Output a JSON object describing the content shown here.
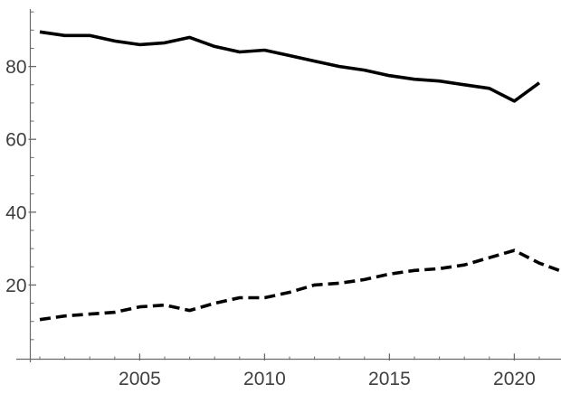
{
  "chart_data": {
    "type": "line",
    "title": "",
    "xlabel": "",
    "ylabel": "",
    "legend_position": "none",
    "grid": "off",
    "background_color": "#ffffff",
    "axis_color": "#6b6b6b",
    "tick_label_color": "#3f3f3f",
    "line_color": "#000000",
    "axes": {
      "x": {
        "major_tick_values": [
          2005,
          2010,
          2015,
          2020
        ],
        "major_tick_labels": [
          "2005",
          "2010",
          "2015",
          "2020"
        ],
        "minor_tick_step": 1,
        "minor_tick_range": [
          2001,
          2022
        ],
        "data_range": [
          2001,
          2022
        ]
      },
      "y": {
        "major_tick_values": [
          20,
          40,
          60,
          80
        ],
        "major_tick_labels": [
          "20",
          "40",
          "60",
          "80"
        ],
        "minor_tick_step": 5,
        "minor_tick_range": [
          5,
          95
        ],
        "data_range": [
          0,
          95
        ]
      }
    },
    "series": [
      {
        "name": "solid-declining-series",
        "line_style": "solid",
        "color": "#000000",
        "x": [
          2001,
          2002,
          2003,
          2004,
          2005,
          2006,
          2007,
          2008,
          2009,
          2010,
          2011,
          2012,
          2013,
          2014,
          2015,
          2016,
          2017,
          2018,
          2019,
          2020,
          2021
        ],
        "values": [
          89.5,
          88.5,
          88.5,
          87,
          86,
          86.5,
          88,
          85.5,
          84,
          84.5,
          83,
          81.5,
          80,
          79,
          77.5,
          76.5,
          76,
          75,
          74,
          70.5,
          75.5
        ]
      },
      {
        "name": "dashed-rising-series",
        "line_style": "dashed",
        "color": "#000000",
        "x": [
          2001,
          2002,
          2003,
          2004,
          2005,
          2006,
          2007,
          2008,
          2009,
          2010,
          2011,
          2012,
          2013,
          2014,
          2015,
          2016,
          2017,
          2018,
          2019,
          2020,
          2021,
          2022
        ],
        "values": [
          10.5,
          11.5,
          12,
          12.5,
          14,
          14.5,
          13,
          15,
          16.5,
          16.5,
          18,
          20,
          20.5,
          21.5,
          23,
          24,
          24.5,
          25.5,
          27.5,
          29.5,
          26,
          23.5
        ]
      }
    ]
  }
}
